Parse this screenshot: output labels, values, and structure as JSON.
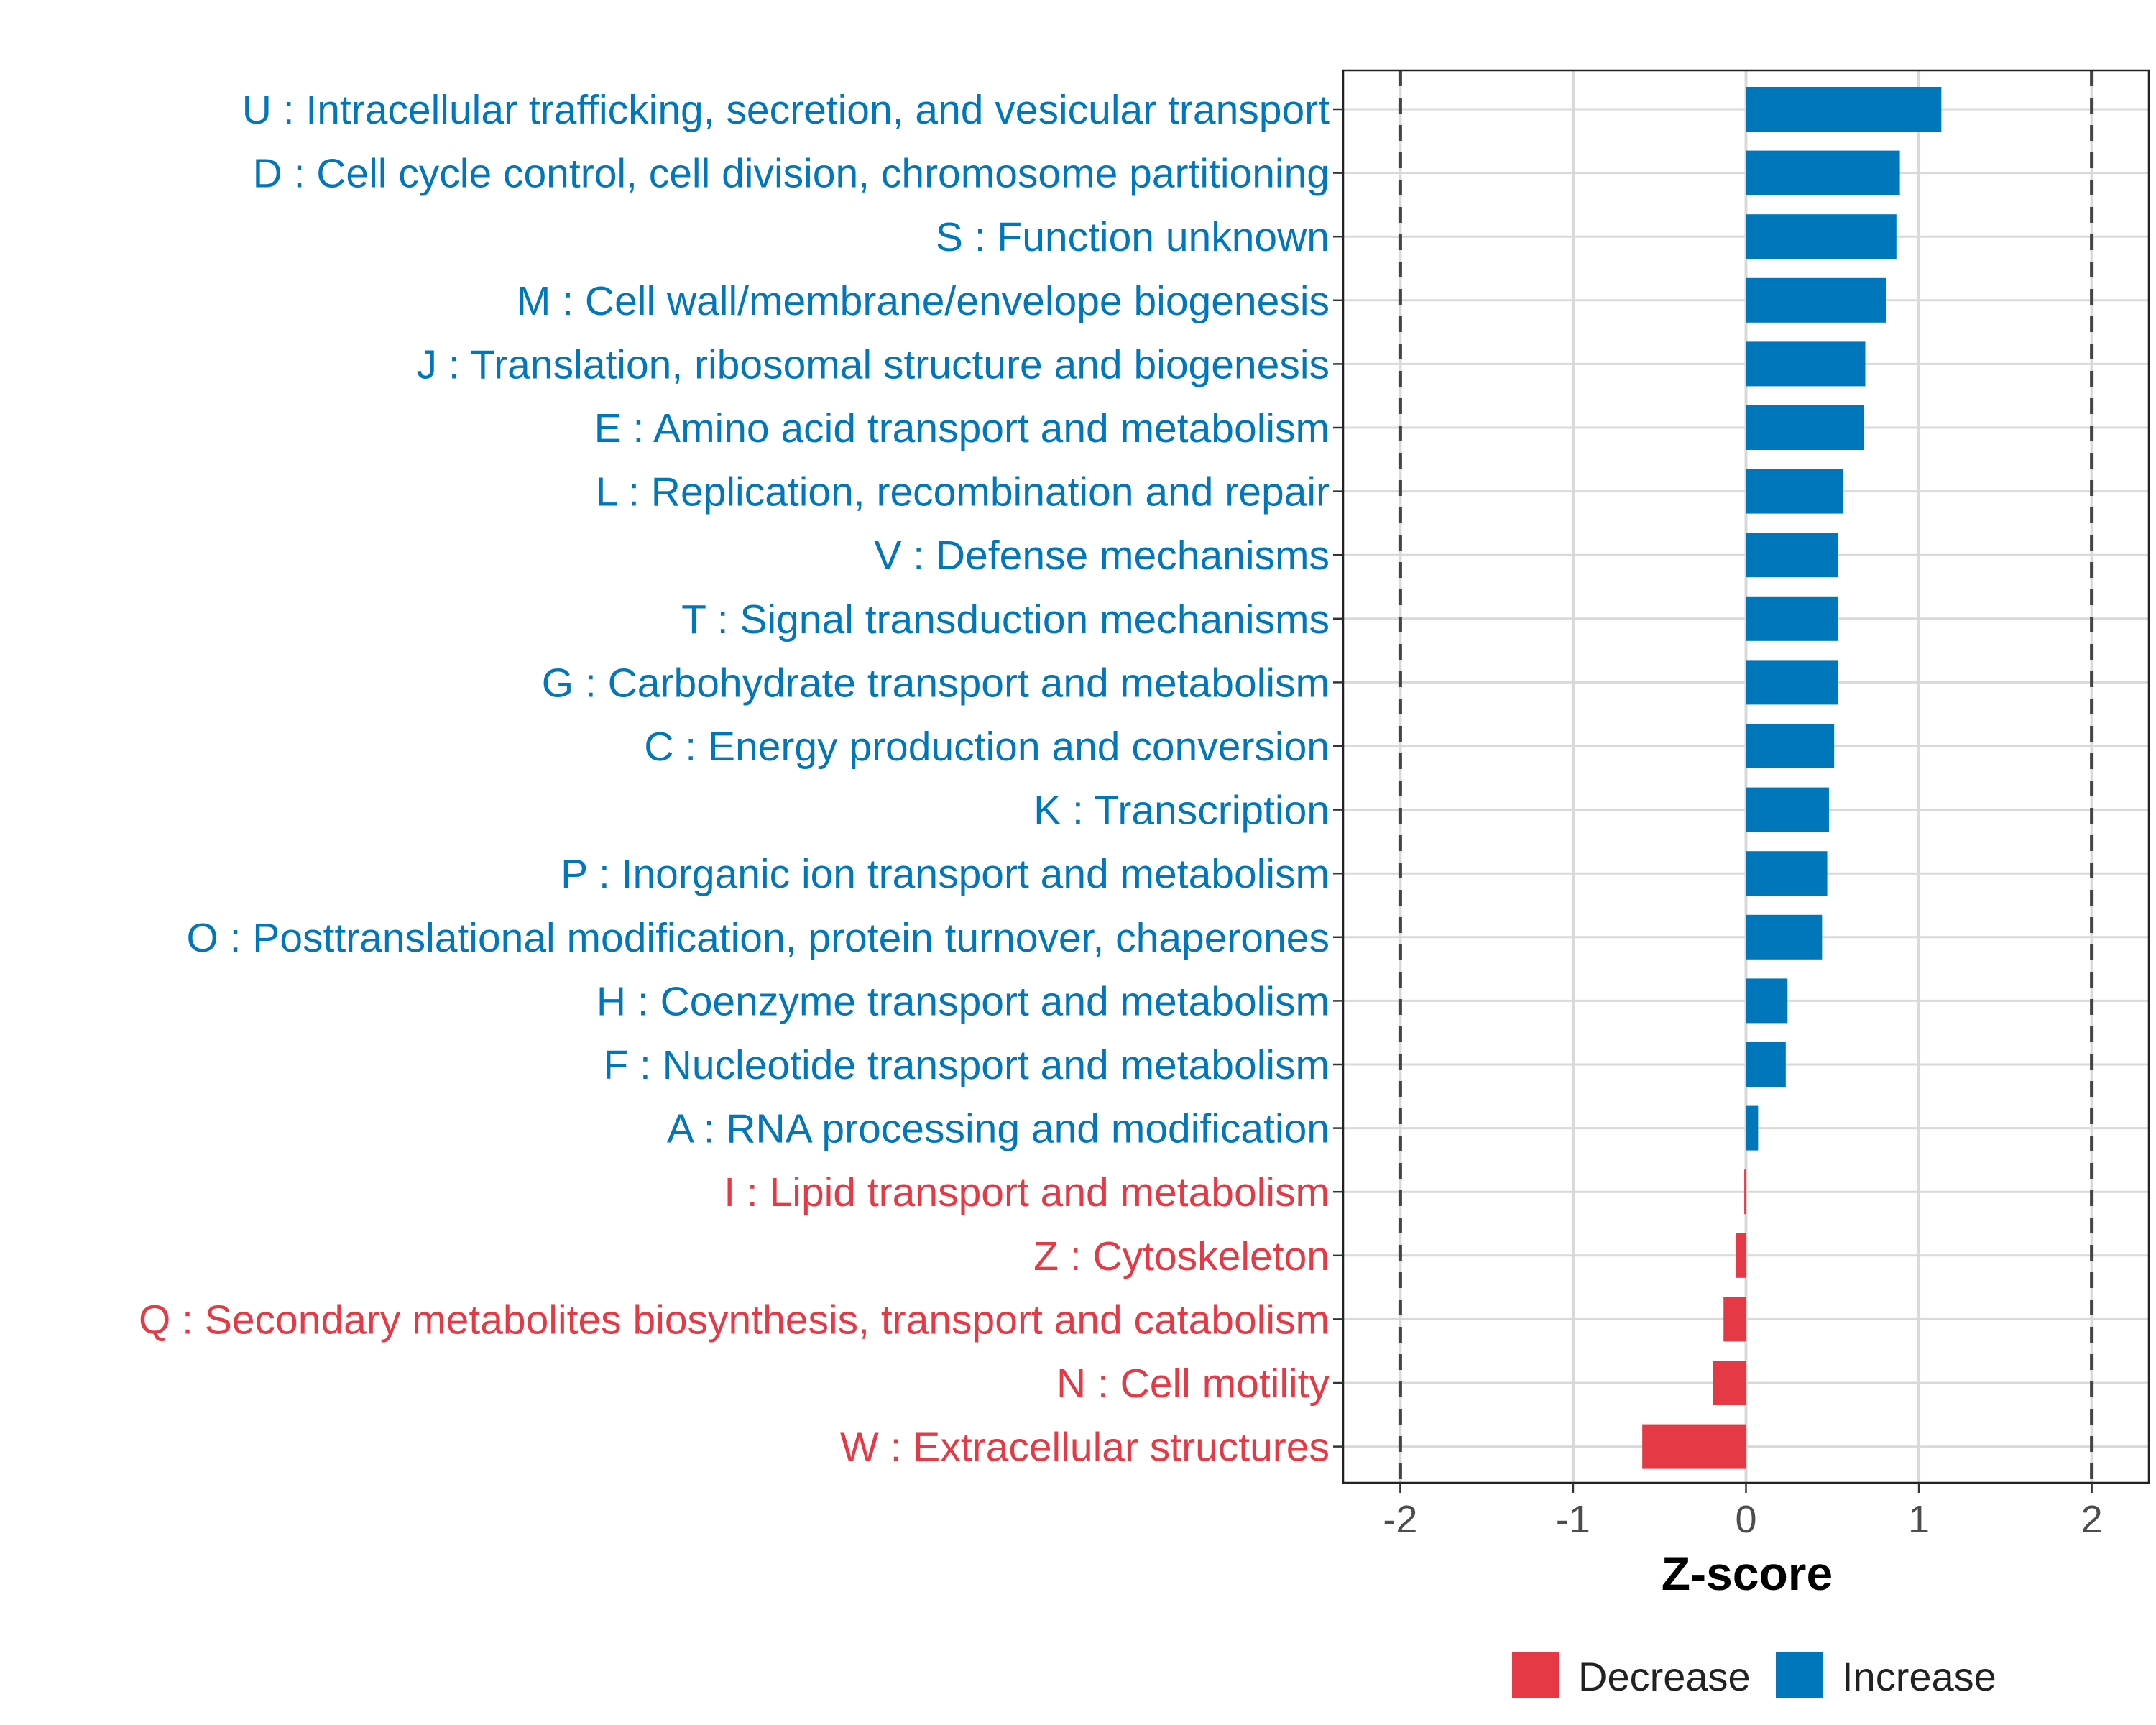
{
  "chart_data": {
    "type": "bar",
    "orientation": "horizontal",
    "title": "",
    "xlabel": "Z-score",
    "ylabel": "",
    "xlim": [
      -2.33,
      2.33
    ],
    "xticks": [
      -2,
      -1,
      0,
      1,
      2
    ],
    "xtick_labels": [
      "-2",
      "-1",
      "0",
      "1",
      "2"
    ],
    "reference_lines": [
      -2,
      2
    ],
    "grid": true,
    "legend_position": "bottom",
    "legend": [
      {
        "name": "Decrease",
        "color": "#E63946"
      },
      {
        "name": "Increase",
        "color": "#0077BB"
      }
    ],
    "categories": [
      "U : Intracellular trafficking, secretion, and vesicular transport",
      "D : Cell cycle control, cell division, chromosome partitioning",
      "S : Function unknown",
      "M : Cell wall/membrane/envelope biogenesis",
      "J : Translation, ribosomal structure and biogenesis",
      "E : Amino acid transport and metabolism",
      "L : Replication, recombination and repair",
      "V : Defense mechanisms",
      "T : Signal transduction mechanisms",
      "G : Carbohydrate transport and metabolism",
      "C : Energy production and conversion",
      "K : Transcription",
      "P : Inorganic ion transport and metabolism",
      "O : Posttranslational modification, protein turnover, chaperones",
      "H : Coenzyme transport and metabolism",
      "F : Nucleotide transport and metabolism",
      "A : RNA processing and modification",
      "I : Lipid transport and metabolism",
      "Z : Cytoskeleton",
      "Q : Secondary metabolites biosynthesis, transport and catabolism",
      "N : Cell motility",
      "W : Extracellular structures"
    ],
    "values": [
      1.13,
      0.89,
      0.87,
      0.81,
      0.69,
      0.68,
      0.56,
      0.53,
      0.53,
      0.53,
      0.51,
      0.48,
      0.47,
      0.44,
      0.24,
      0.23,
      0.07,
      -0.01,
      -0.06,
      -0.13,
      -0.19,
      -0.6
    ]
  }
}
